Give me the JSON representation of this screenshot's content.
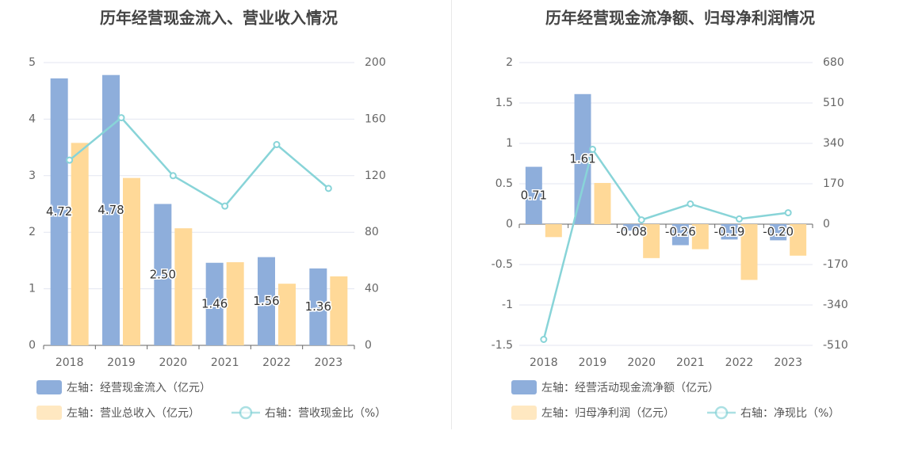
{
  "chart_data": [
    {
      "type": "bar",
      "title": "历年经营现金流入、营业收入情况",
      "categories": [
        "2018",
        "2019",
        "2020",
        "2021",
        "2022",
        "2023"
      ],
      "left_axis": {
        "ticks": [
          "0",
          "1",
          "2",
          "3",
          "4",
          "5"
        ],
        "range": [
          0,
          5
        ]
      },
      "right_axis": {
        "ticks": [
          "0",
          "40",
          "80",
          "120",
          "160",
          "200"
        ],
        "range": [
          0,
          200
        ]
      },
      "series": [
        {
          "name": "左轴：经营现金流入（亿元）",
          "type": "bar",
          "axis": "left",
          "color": "#8eaedb",
          "values": [
            4.72,
            4.78,
            2.5,
            1.46,
            1.56,
            1.36
          ],
          "labels": [
            "4.72",
            "4.78",
            "2.50",
            "1.46",
            "1.56",
            "1.36"
          ]
        },
        {
          "name": "左轴：营业总收入（亿元）",
          "type": "bar",
          "axis": "left",
          "color": "#ffd998",
          "values": [
            3.58,
            2.96,
            2.07,
            1.47,
            1.09,
            1.22
          ]
        },
        {
          "name": "右轴：营收现金比（%）",
          "type": "line",
          "axis": "right",
          "color": "#88d4d8",
          "values": [
            131,
            161,
            120,
            98.5,
            142,
            111
          ]
        }
      ],
      "grid": true,
      "legend_position": "bottom"
    },
    {
      "type": "bar",
      "title": "历年经营现金流净额、归母净利润情况",
      "categories": [
        "2018",
        "2019",
        "2020",
        "2021",
        "2022",
        "2023"
      ],
      "left_axis": {
        "ticks": [
          "-1.5",
          "-1",
          "-0.5",
          "0",
          "0.5",
          "1",
          "1.5",
          "2"
        ],
        "range": [
          -1.5,
          2
        ]
      },
      "right_axis": {
        "ticks": [
          "-510",
          "-340",
          "-170",
          "0",
          "170",
          "340",
          "510",
          "680"
        ],
        "range": [
          -510,
          680
        ]
      },
      "series": [
        {
          "name": "左轴：经营活动现金流净额（亿元）",
          "type": "bar",
          "axis": "left",
          "color": "#8eaedb",
          "values": [
            0.71,
            1.61,
            -0.08,
            -0.26,
            -0.19,
            -0.2
          ],
          "labels": [
            "0.71",
            "1.61",
            "-0.08",
            "-0.26",
            "-0.19",
            "-0.20"
          ]
        },
        {
          "name": "左轴：归母净利润（亿元）",
          "type": "bar",
          "axis": "left",
          "color": "#ffd998",
          "values": [
            -0.16,
            0.51,
            -0.42,
            -0.31,
            -0.69,
            -0.39
          ]
        },
        {
          "name": "右轴：净现比（%）",
          "type": "line",
          "axis": "right",
          "color": "#88d4d8",
          "values": [
            -485,
            315,
            18,
            85,
            22,
            48
          ]
        }
      ],
      "grid": true,
      "legend_position": "bottom"
    }
  ]
}
